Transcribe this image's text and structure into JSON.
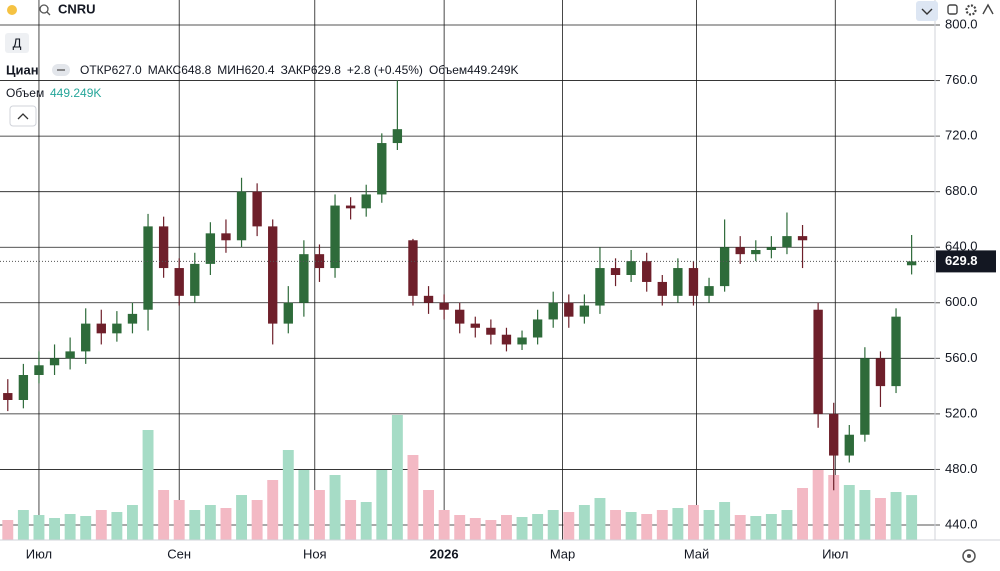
{
  "toolbar": {
    "symbol": "CNRU"
  },
  "chart_data": {
    "type": "candlestick",
    "title": "Циан",
    "interval": "Д",
    "legend": [
      {
        "label": "ОТКР",
        "value": "627.0"
      },
      {
        "label": "МАКС",
        "value": "648.8"
      },
      {
        "label": "МИН",
        "value": "620.4"
      },
      {
        "label": "ЗАКР",
        "value": "629.8"
      },
      {
        "label": "",
        "value": "+2.8 (+0.45%)"
      },
      {
        "label": "Объем",
        "value": "449.249K"
      }
    ],
    "volume_label": "Объем",
    "volume_value": "449.249K",
    "open": [
      535,
      530,
      548,
      555,
      560,
      565,
      585,
      578,
      585,
      595,
      655,
      625,
      605,
      628,
      650,
      645,
      680,
      655,
      585,
      600,
      635,
      625,
      670,
      668,
      678,
      715,
      645,
      605,
      600,
      595,
      585,
      582,
      577,
      570,
      575,
      588,
      600,
      590,
      598,
      625,
      620,
      630,
      615,
      605,
      625,
      605,
      612,
      640,
      635,
      638,
      640,
      648,
      595,
      520,
      490,
      505,
      560,
      540,
      627.0
    ],
    "high": [
      545,
      556,
      565,
      570,
      575,
      596,
      595,
      594,
      600,
      664,
      662,
      632,
      636,
      658,
      660,
      690,
      686,
      660,
      612,
      645,
      642,
      678,
      676,
      685,
      722,
      760,
      646,
      612,
      606,
      600,
      590,
      588,
      582,
      580,
      595,
      608,
      606,
      606,
      640,
      632,
      638,
      636,
      620,
      632,
      630,
      618,
      660,
      648,
      645,
      648,
      665,
      656,
      600,
      528,
      512,
      568,
      565,
      596,
      648.8
    ],
    "low": [
      522,
      524,
      542,
      548,
      552,
      556,
      570,
      572,
      578,
      580,
      618,
      598,
      600,
      620,
      636,
      640,
      648,
      570,
      578,
      590,
      615,
      618,
      660,
      662,
      672,
      710,
      598,
      592,
      588,
      578,
      575,
      570,
      565,
      566,
      570,
      582,
      582,
      585,
      592,
      612,
      615,
      608,
      598,
      600,
      598,
      600,
      608,
      628,
      630,
      632,
      635,
      625,
      510,
      465,
      485,
      500,
      525,
      535,
      620.4
    ],
    "close": [
      530,
      548,
      555,
      560,
      565,
      585,
      578,
      585,
      592,
      655,
      625,
      605,
      628,
      650,
      645,
      680,
      655,
      585,
      600,
      635,
      625,
      670,
      668,
      678,
      715,
      725,
      605,
      600,
      595,
      585,
      582,
      577,
      570,
      575,
      588,
      600,
      590,
      598,
      625,
      620,
      630,
      615,
      605,
      625,
      605,
      612,
      640,
      635,
      638,
      640,
      648,
      645,
      520,
      490,
      505,
      560,
      540,
      590,
      629.8
    ],
    "volume": [
      200000,
      300000,
      250000,
      220000,
      260000,
      240000,
      300000,
      280000,
      350000,
      1100000,
      500000,
      400000,
      300000,
      350000,
      320000,
      450000,
      400000,
      600000,
      900000,
      700000,
      500000,
      650000,
      400000,
      380000,
      700000,
      1250000,
      850000,
      500000,
      300000,
      250000,
      220000,
      200000,
      250000,
      230000,
      260000,
      300000,
      280000,
      350000,
      420000,
      300000,
      280000,
      260000,
      300000,
      320000,
      350000,
      300000,
      380000,
      250000,
      240000,
      260000,
      300000,
      520000,
      700000,
      650000,
      550000,
      500000,
      420000,
      480000,
      449249
    ],
    "up_color": "#2e6b3a",
    "down_color": "#6e1f2a",
    "volume_up_color": "#a6dcc6",
    "volume_down_color": "#f3b9c4",
    "xlim": [
      -0.5,
      59.5
    ],
    "xticks": [
      {
        "value": 2,
        "label": "Июл"
      },
      {
        "value": 11,
        "label": "Сен"
      },
      {
        "value": 19.7,
        "label": "Ноя"
      },
      {
        "value": 28,
        "label": "2026"
      },
      {
        "value": 35.6,
        "label": "Мар"
      },
      {
        "value": 44.2,
        "label": "Май"
      },
      {
        "value": 53.1,
        "label": "Июл"
      }
    ],
    "ylim": [
      429.2,
      818
    ],
    "yticks": [
      {
        "value": 440,
        "label": "440.0"
      },
      {
        "value": 480,
        "label": "480.0"
      },
      {
        "value": 520,
        "label": "520.0"
      },
      {
        "value": 560,
        "label": "560.0"
      },
      {
        "value": 600,
        "label": "600.0"
      },
      {
        "value": 640,
        "label": "640.0"
      },
      {
        "value": 680,
        "label": "680.0"
      },
      {
        "value": 720,
        "label": "720.0"
      },
      {
        "value": 760,
        "label": "760.0"
      },
      {
        "value": 800,
        "label": "800.0"
      }
    ],
    "grid": true
  }
}
